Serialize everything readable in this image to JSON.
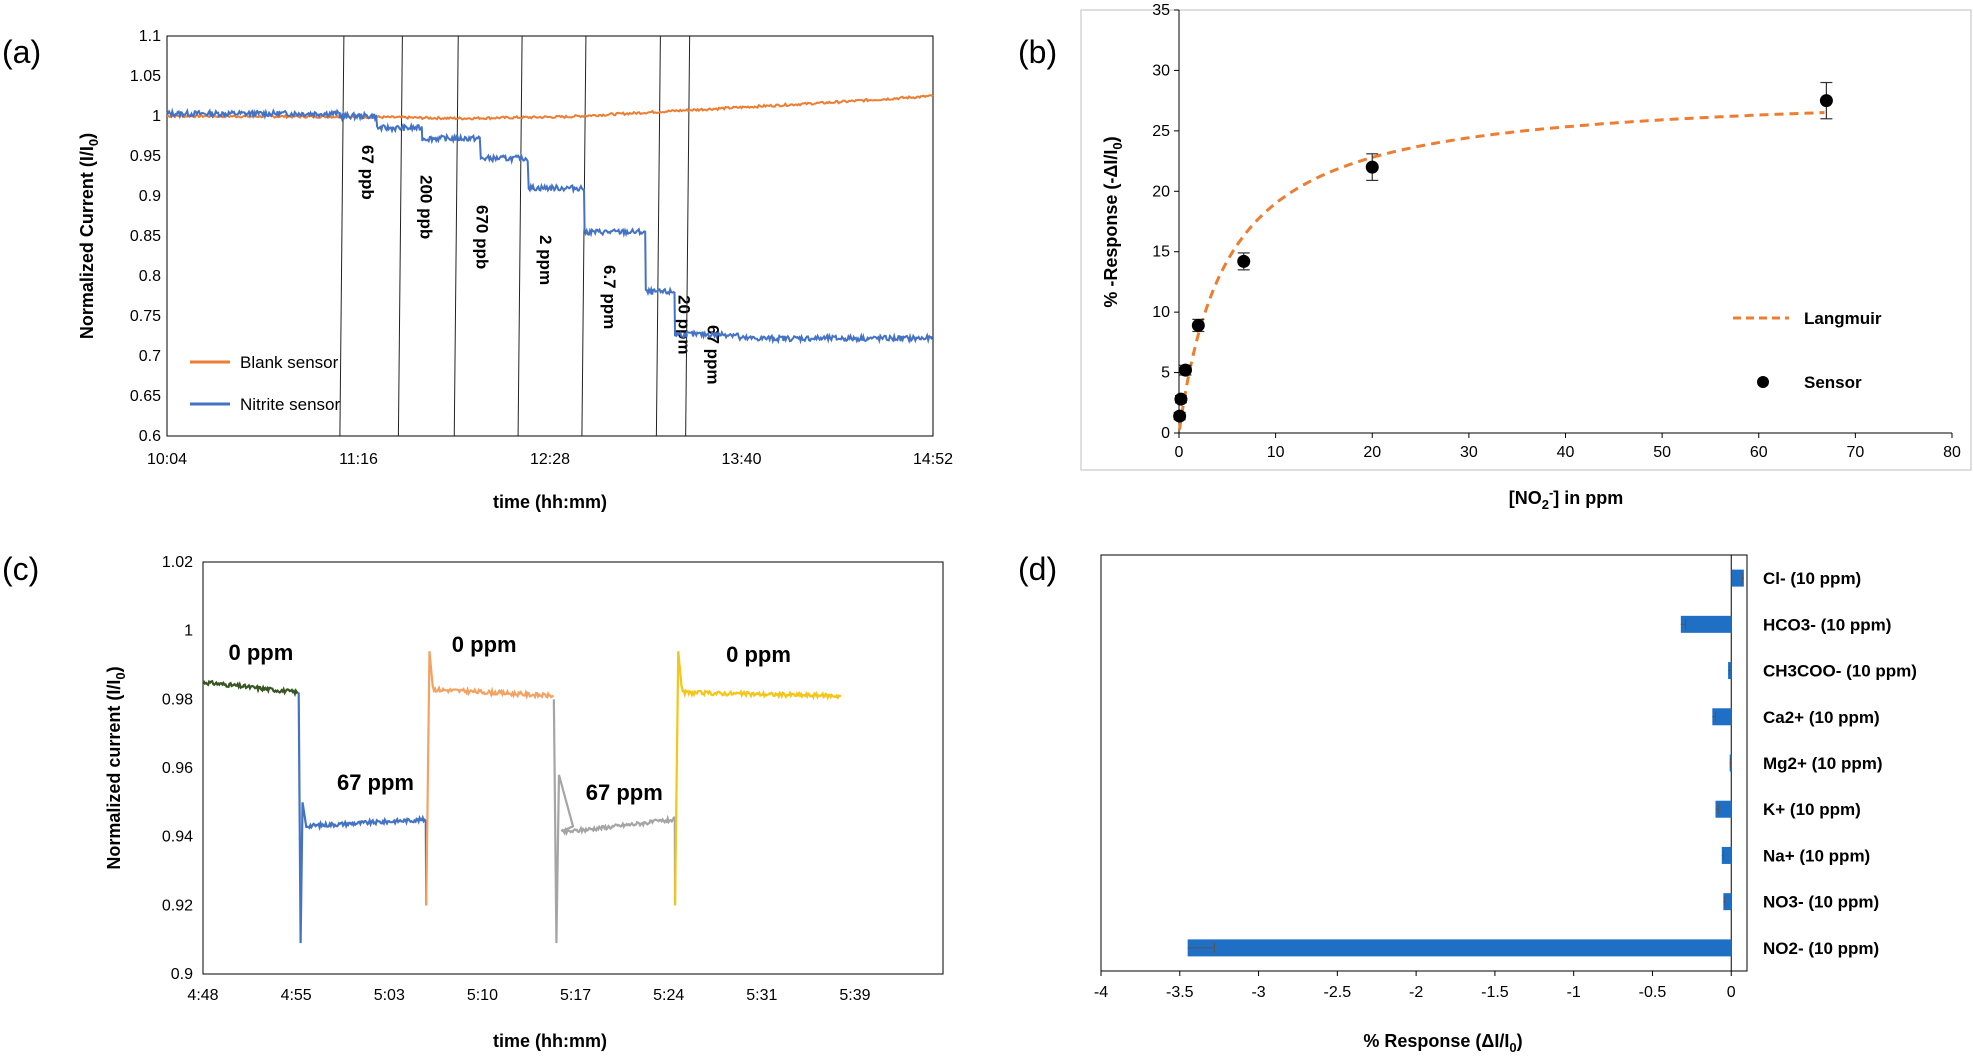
{
  "panels": [
    "(a)",
    "(b)",
    "(c)",
    "(d)"
  ],
  "chart_data": [
    {
      "id": "a",
      "type": "line",
      "xlabel": "time (hh:mm)",
      "ylabel_main": "Normalized Current (I/I",
      "ylabel_sub": "0",
      "ylabel_end": ")",
      "x_ticks": [
        "10:04",
        "11:16",
        "12:28",
        "13:40",
        "14:52"
      ],
      "x_range_min": [
        0,
        288
      ],
      "ylim": [
        0.6,
        1.1
      ],
      "y_ticks": [
        "0.6",
        "0.65",
        "0.7",
        "0.75",
        "0.8",
        "0.85",
        "0.9",
        "0.95",
        "1",
        "1.05",
        "1.1"
      ],
      "legend": [
        {
          "name": "Blank sensor",
          "color": "#ED7D31"
        },
        {
          "name": "Nitrite sensor",
          "color": "#4472C4"
        }
      ],
      "legend_position": "bottom-left",
      "blank_sensor": {
        "x_min": [
          0,
          72,
          110,
          150,
          200,
          250,
          288
        ],
        "y": [
          1.0,
          0.999,
          0.997,
          0.999,
          1.008,
          1.017,
          1.025
        ]
      },
      "nitrite_steps": [
        {
          "x_min": [
            0,
            65
          ],
          "y": 1.003
        },
        {
          "x_min": [
            65,
            79
          ],
          "y": 1.0
        },
        {
          "x_min": [
            79,
            96
          ],
          "y": 0.985
        },
        {
          "x_min": [
            96,
            118
          ],
          "y": 0.972
        },
        {
          "x_min": [
            118,
            136
          ],
          "y": 0.947
        },
        {
          "x_min": [
            136,
            157
          ],
          "y": 0.91
        },
        {
          "x_min": [
            157,
            180
          ],
          "y": 0.855
        },
        {
          "x_min": [
            180,
            191
          ],
          "y": 0.78
        },
        {
          "x_min": [
            191,
            215
          ],
          "y": 0.727
        },
        {
          "x_min": [
            215,
            288
          ],
          "y": 0.722
        }
      ],
      "injections": [
        {
          "x_min": 65,
          "label": "67 ppb"
        },
        {
          "x_min": 87,
          "label": "200 ppb"
        },
        {
          "x_min": 108,
          "label": "670 ppb"
        },
        {
          "x_min": 132,
          "label": "2 ppm"
        },
        {
          "x_min": 156,
          "label": "6.7 ppm"
        },
        {
          "x_min": 184,
          "label": "20 ppm"
        },
        {
          "x_min": 195,
          "label": "67 ppm"
        }
      ]
    },
    {
      "id": "b",
      "type": "scatter",
      "xlabel_main": "[NO",
      "xlabel_sub": "2",
      "xlabel_sup": "-",
      "xlabel_end": "] in ppm",
      "ylabel_main": "% -Response (-ΔI/I",
      "ylabel_sub": "0",
      "ylabel_end": ")",
      "xlim": [
        0,
        80
      ],
      "ylim": [
        0,
        35
      ],
      "x_ticks": [
        "0",
        "10",
        "20",
        "30",
        "40",
        "50",
        "60",
        "70",
        "80"
      ],
      "y_ticks": [
        "0",
        "5",
        "10",
        "15",
        "20",
        "25",
        "30",
        "35"
      ],
      "legend": [
        {
          "name": "Langmuir",
          "color": "#ED7D31"
        },
        {
          "name": "Sensor",
          "color": "#000000"
        }
      ],
      "legend_position": "bottom-right",
      "sensor_points": [
        {
          "x": 0.067,
          "y": 1.4,
          "err": 0.3
        },
        {
          "x": 0.2,
          "y": 2.8,
          "err": 0.3
        },
        {
          "x": 0.67,
          "y": 5.2,
          "err": 0.4
        },
        {
          "x": 2,
          "y": 8.9,
          "err": 0.5
        },
        {
          "x": 6.7,
          "y": 14.2,
          "err": 0.7
        },
        {
          "x": 20,
          "y": 22.0,
          "err": 1.1
        },
        {
          "x": 67,
          "y": 27.5,
          "err": 1.5
        }
      ],
      "langmuir": {
        "rmax": 28.5,
        "k": 0.2
      }
    },
    {
      "id": "c",
      "type": "line",
      "xlabel": "time (hh:mm)",
      "ylabel": "Normalized current (I/I",
      "ylabel_sub": "0",
      "ylabel_end": ")",
      "x_ticks": [
        "4:48",
        "4:55",
        "5:03",
        "5:10",
        "5:17",
        "5:24",
        "5:31",
        "5:39"
      ],
      "x_range_min": [
        0,
        58
      ],
      "ylim": [
        0.9,
        1.02
      ],
      "y_ticks": [
        "0.9",
        "0.92",
        "0.94",
        "0.96",
        "0.98",
        "1",
        "1.02"
      ],
      "segments": [
        {
          "color": "#375623",
          "x_min": [
            0,
            7.5
          ],
          "y_start": 0.985,
          "y_end": 0.982
        },
        {
          "color": "#4472C4",
          "x_min": [
            7.5,
            17.5
          ],
          "y_start": 0.943,
          "y_end": 0.945
        },
        {
          "color": "#F4A261",
          "x_min": [
            17.5,
            27.5
          ],
          "y_start": 0.983,
          "y_end": 0.981
        },
        {
          "color": "#A5A5A5",
          "x_min": [
            27.5,
            37
          ],
          "y_start": 0.941,
          "y_end": 0.945
        },
        {
          "color": "#F5C518",
          "x_min": [
            37,
            50
          ],
          "y_start": 0.982,
          "y_end": 0.981
        }
      ],
      "annotations": [
        {
          "text": "0 ppm",
          "x_min": 2
        },
        {
          "text": "67 ppm",
          "x_min": 10.5
        },
        {
          "text": "0 ppm",
          "x_min": 19.5
        },
        {
          "text": "67 ppm",
          "x_min": 30
        },
        {
          "text": "0 ppm",
          "x_min": 41
        }
      ]
    },
    {
      "id": "d",
      "type": "bar",
      "orientation": "horizontal",
      "xlabel_main": "% Response (ΔI/I",
      "xlabel_sub": "0",
      "xlabel_end": ")",
      "xlim": [
        -4,
        0.1
      ],
      "x_ticks": [
        "-4",
        "-3.5",
        "-3",
        "-2.5",
        "-2",
        "-1.5",
        "-1",
        "-0.5",
        "0"
      ],
      "bar_color": "#1F6FC5",
      "categories": [
        "Cl- (10 ppm)",
        "HCO3- (10 ppm)",
        "CH3COO- (10 ppm)",
        "Ca2+ (10 ppm)",
        "Mg2+ (10 ppm)",
        "K+ (10 ppm)",
        "Na+ (10 ppm)",
        "NO3- (10 ppm)",
        "NO2- (10 ppm)"
      ],
      "values": [
        0.08,
        -0.32,
        -0.02,
        -0.12,
        -0.01,
        -0.1,
        -0.06,
        -0.05,
        -3.45
      ],
      "errors": [
        0.01,
        0.03,
        0.01,
        0.02,
        0.005,
        0.02,
        0.01,
        0.01,
        0.17
      ]
    }
  ]
}
